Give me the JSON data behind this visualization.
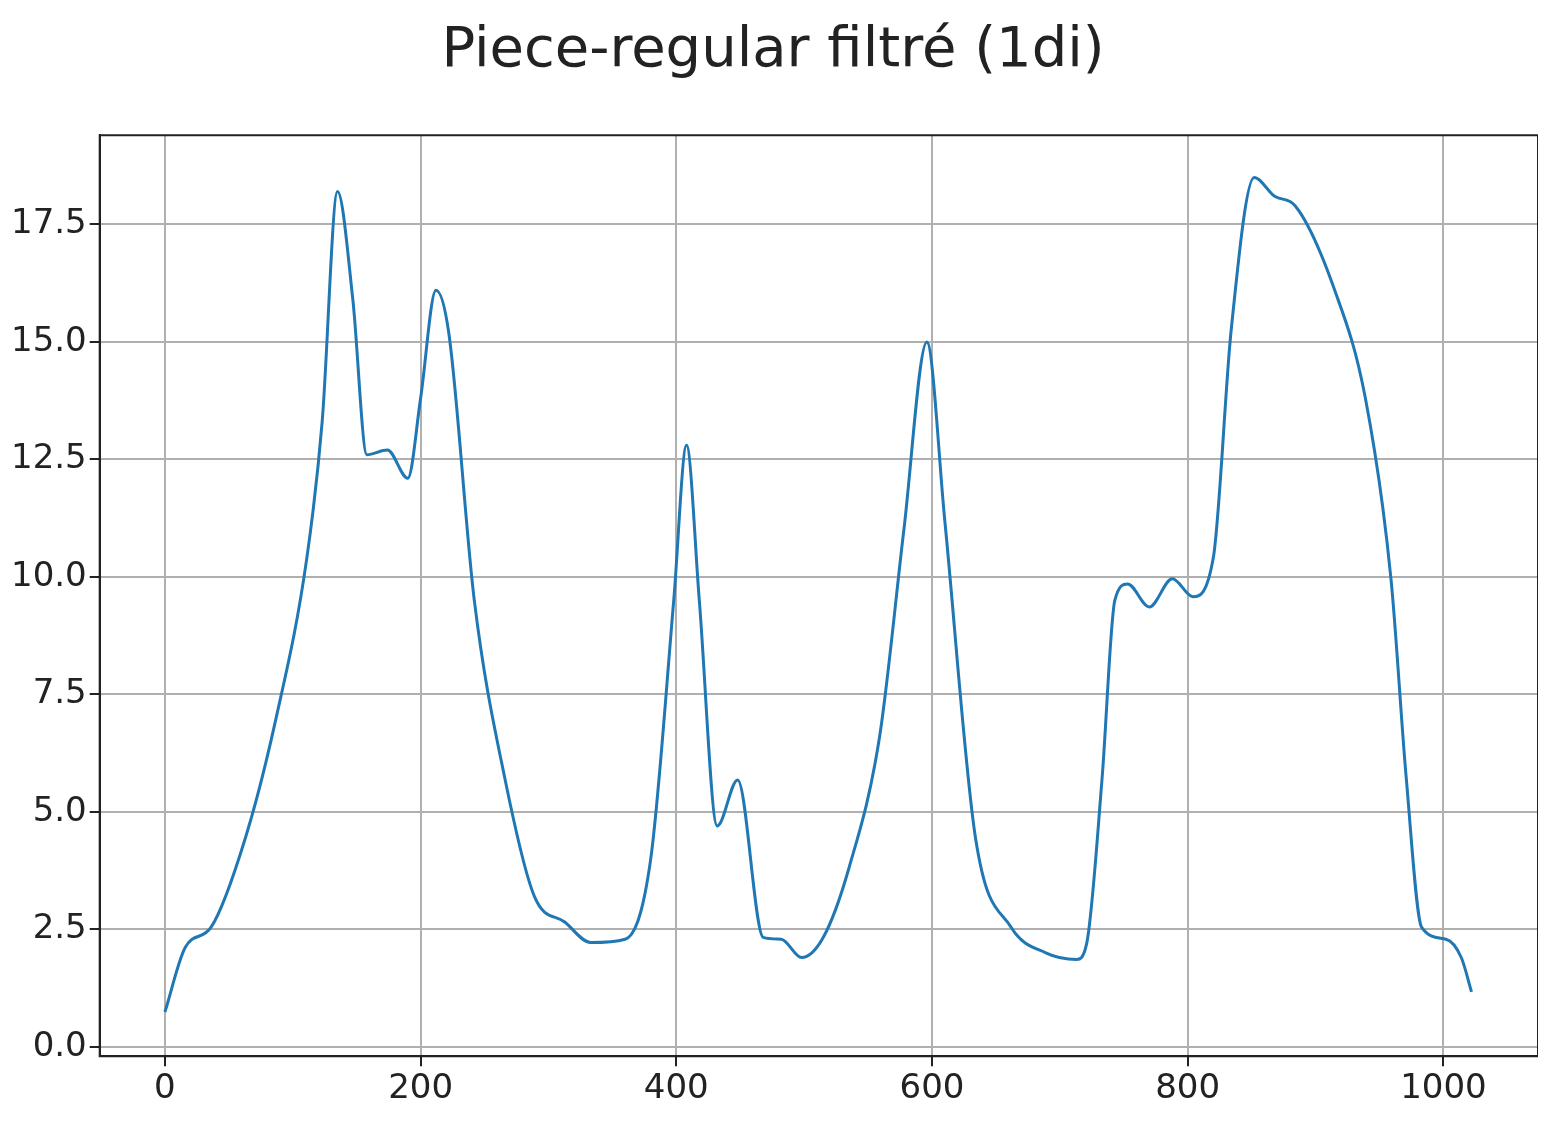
{
  "chart_data": {
    "type": "line",
    "title": "Piece-regular filtré (1di)",
    "x": [
      0,
      16,
      36,
      63,
      87,
      111,
      123,
      135,
      147,
      158,
      174,
      190,
      200,
      212,
      222,
      242,
      266,
      289,
      313,
      333,
      360,
      380,
      398,
      408,
      418,
      432,
      448,
      468,
      482,
      498,
      515,
      535,
      559,
      578,
      596,
      610,
      634,
      662,
      689,
      713,
      721,
      733,
      743,
      753,
      770,
      788,
      804,
      820,
      834,
      852,
      868,
      884,
      915,
      939,
      959,
      971,
      983,
      1002,
      1014,
      1022
    ],
    "series": [
      {
        "color": "#1f77b4",
        "values": [
          0.74,
          2.12,
          2.54,
          4.45,
          7.0,
          10.4,
          13.3,
          18.2,
          15.9,
          12.6,
          12.7,
          12.1,
          13.8,
          16.1,
          15.2,
          9.5,
          5.7,
          3.2,
          2.65,
          2.22,
          2.29,
          4.0,
          9.5,
          12.8,
          9.5,
          4.7,
          5.68,
          2.33,
          2.29,
          1.9,
          2.33,
          3.8,
          6.6,
          11.0,
          15.0,
          11.2,
          4.45,
          2.54,
          2.0,
          1.86,
          2.2,
          5.7,
          9.5,
          9.85,
          9.36,
          9.96,
          9.58,
          10.4,
          15.25,
          18.5,
          18.1,
          17.9,
          16.1,
          13.8,
          9.96,
          5.7,
          2.54,
          2.29,
          1.9,
          1.17
        ]
      }
    ],
    "xlim": [
      -51,
      1074
    ],
    "ylim": [
      -0.2,
      19.4
    ],
    "xticks": [
      0,
      200,
      400,
      600,
      800,
      1000
    ],
    "yticks": [
      {
        "value": 0,
        "label": "0.0"
      },
      {
        "value": 2.5,
        "label": "2.5"
      },
      {
        "value": 5,
        "label": "5.0"
      },
      {
        "value": 7.5,
        "label": "7.5"
      },
      {
        "value": 10,
        "label": "10.0"
      },
      {
        "value": 12.5,
        "label": "12.5"
      },
      {
        "value": 15,
        "label": "15.0"
      },
      {
        "value": 17.5,
        "label": "17.5"
      }
    ],
    "grid": true
  }
}
